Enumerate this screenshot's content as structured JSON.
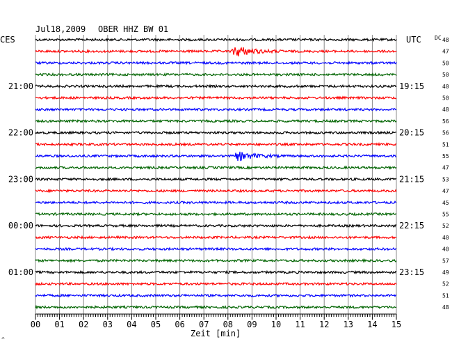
{
  "header": {
    "title": "Jul18,2009",
    "station": "OBER HHZ BW 01"
  },
  "left_axis_label": "CES",
  "right_axis_label": "UTC",
  "dc_label": "DC",
  "x_axis_label": "Zeit [min]",
  "corner_mark": "^",
  "chart_data": {
    "type": "line",
    "title": "Jul18,2009   OBER HHZ BW 01",
    "xlabel": "Zeit [min]",
    "xlim": [
      0,
      15
    ],
    "x_ticks": [
      "00",
      "01",
      "02",
      "03",
      "04",
      "05",
      "06",
      "07",
      "08",
      "09",
      "10",
      "11",
      "12",
      "13",
      "14",
      "15"
    ],
    "left_time_labels": [
      {
        "row": 4,
        "text": "21:00"
      },
      {
        "row": 8,
        "text": "22:00"
      },
      {
        "row": 12,
        "text": "23:00"
      },
      {
        "row": 16,
        "text": "00:00"
      },
      {
        "row": 20,
        "text": "01:00"
      }
    ],
    "right_time_labels": [
      {
        "row": 4,
        "text": "19:15"
      },
      {
        "row": 8,
        "text": "20:15"
      },
      {
        "row": 12,
        "text": "21:15"
      },
      {
        "row": 16,
        "text": "22:15"
      },
      {
        "row": 20,
        "text": "23:15"
      }
    ],
    "trace_colors": [
      "#000000",
      "#ff0000",
      "#0000ff",
      "#006400"
    ],
    "dc_values": [
      "48",
      "47",
      "50",
      "50",
      "40",
      "50",
      "48",
      "56",
      "56",
      "51",
      "55",
      "47",
      "53",
      "47",
      "45",
      "55",
      "52",
      "40",
      "40",
      "57",
      "49",
      "52",
      "51",
      "48"
    ],
    "events": [
      {
        "row": 1,
        "minute": 8.3,
        "amplitude": 8
      },
      {
        "row": 10,
        "minute": 8.4,
        "amplitude": 6
      }
    ]
  }
}
